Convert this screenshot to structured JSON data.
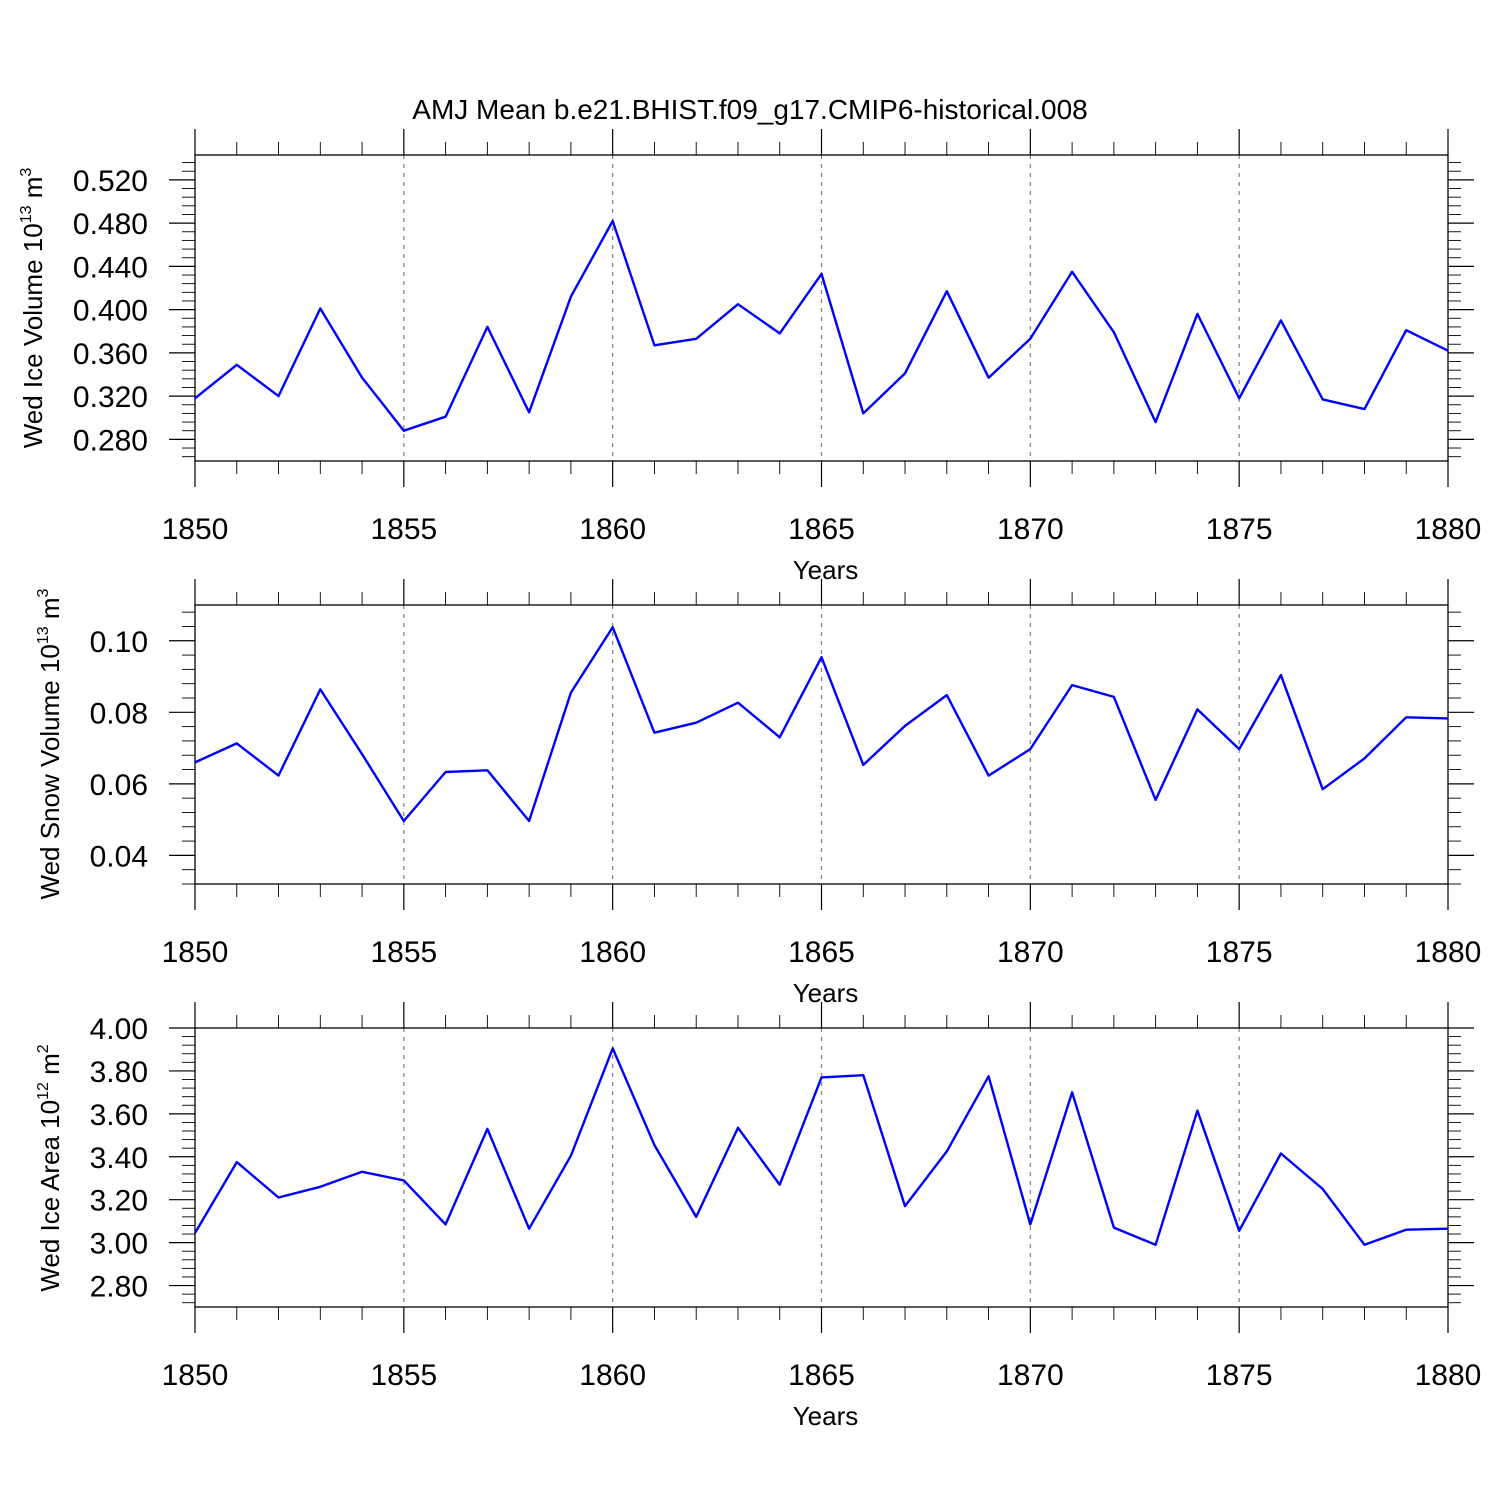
{
  "title": "AMJ Mean b.e21.BHIST.f09_g17.CMIP6-historical.008",
  "colors": {
    "series": "#0000ff",
    "grid": "#808080",
    "axis": "#000000"
  },
  "chart_data": [
    {
      "type": "line",
      "ylabel": {
        "main": "Wed Ice Volume 10",
        "sup_exp": "13",
        "unit": " m",
        "sup_unit": "3"
      },
      "xlabel": "Years",
      "xlim": [
        1850,
        1880
      ],
      "ylim": [
        0.26,
        0.543
      ],
      "yticks": [
        0.28,
        0.32,
        0.36,
        0.4,
        0.44,
        0.48,
        0.52
      ],
      "ytick_labels": [
        "0.280",
        "0.320",
        "0.360",
        "0.400",
        "0.440",
        "0.480",
        "0.520"
      ],
      "yminor_step": 0.008,
      "xticks": [
        1850,
        1855,
        1860,
        1865,
        1870,
        1875,
        1880
      ],
      "xtick_labels": [
        "1850",
        "1855",
        "1860",
        "1865",
        "1870",
        "1875",
        "1880"
      ],
      "grid": "x, dashed",
      "x": [
        1850,
        1851,
        1852,
        1853,
        1854,
        1855,
        1856,
        1857,
        1858,
        1859,
        1860,
        1861,
        1862,
        1863,
        1864,
        1865,
        1866,
        1867,
        1868,
        1869,
        1870,
        1871,
        1872,
        1873,
        1874,
        1875,
        1876,
        1877,
        1878,
        1879,
        1880
      ],
      "y": [
        0.318,
        0.349,
        0.32,
        0.401,
        0.337,
        0.288,
        0.301,
        0.384,
        0.305,
        0.412,
        0.482,
        0.367,
        0.373,
        0.405,
        0.378,
        0.433,
        0.304,
        0.341,
        0.417,
        0.337,
        0.373,
        0.435,
        0.379,
        0.296,
        0.396,
        0.318,
        0.39,
        0.317,
        0.308,
        0.381,
        0.362
      ]
    },
    {
      "type": "line",
      "ylabel": {
        "main": "Wed Snow Volume 10",
        "sup_exp": "13",
        "unit": " m",
        "sup_unit": "3"
      },
      "xlabel": "Years",
      "xlim": [
        1850,
        1880
      ],
      "ylim": [
        0.032,
        0.11
      ],
      "yticks": [
        0.04,
        0.06,
        0.08,
        0.1
      ],
      "ytick_labels": [
        "0.04",
        "0.06",
        "0.08",
        "0.10"
      ],
      "yminor_step": 0.004,
      "xticks": [
        1850,
        1855,
        1860,
        1865,
        1870,
        1875,
        1880
      ],
      "xtick_labels": [
        "1850",
        "1855",
        "1860",
        "1865",
        "1870",
        "1875",
        "1880"
      ],
      "grid": "x, dashed",
      "x": [
        1850,
        1851,
        1852,
        1853,
        1854,
        1855,
        1856,
        1857,
        1858,
        1859,
        1860,
        1861,
        1862,
        1863,
        1864,
        1865,
        1866,
        1867,
        1868,
        1869,
        1870,
        1871,
        1872,
        1873,
        1874,
        1875,
        1876,
        1877,
        1878,
        1879,
        1880
      ],
      "y": [
        0.066,
        0.0713,
        0.0623,
        0.0864,
        0.0683,
        0.0496,
        0.0633,
        0.0638,
        0.0496,
        0.0855,
        0.1038,
        0.0743,
        0.0771,
        0.0827,
        0.073,
        0.0954,
        0.0653,
        0.0762,
        0.0848,
        0.0623,
        0.0697,
        0.0876,
        0.0843,
        0.0555,
        0.0808,
        0.0697,
        0.0904,
        0.0585,
        0.0671,
        0.0786,
        0.0783
      ]
    },
    {
      "type": "line",
      "ylabel": {
        "main": "Wed Ice Area 10",
        "sup_exp": "12",
        "unit": " m",
        "sup_unit": "2"
      },
      "xlabel": "Years",
      "xlim": [
        1850,
        1880
      ],
      "ylim": [
        2.7,
        4.0
      ],
      "yticks": [
        2.8,
        3.0,
        3.2,
        3.4,
        3.6,
        3.8,
        4.0
      ],
      "ytick_labels": [
        "2.80",
        "3.00",
        "3.20",
        "3.40",
        "3.60",
        "3.80",
        "4.00"
      ],
      "yminor_step": 0.04,
      "xticks": [
        1850,
        1855,
        1860,
        1865,
        1870,
        1875,
        1880
      ],
      "xtick_labels": [
        "1850",
        "1855",
        "1860",
        "1865",
        "1870",
        "1875",
        "1880"
      ],
      "grid": "x, dashed",
      "x": [
        1850,
        1851,
        1852,
        1853,
        1854,
        1855,
        1856,
        1857,
        1858,
        1859,
        1860,
        1861,
        1862,
        1863,
        1864,
        1865,
        1866,
        1867,
        1868,
        1869,
        1870,
        1871,
        1872,
        1873,
        1874,
        1875,
        1876,
        1877,
        1878,
        1879,
        1880
      ],
      "y": [
        3.045,
        3.375,
        3.21,
        3.26,
        3.33,
        3.29,
        3.085,
        3.53,
        3.065,
        3.405,
        3.905,
        3.455,
        3.12,
        3.535,
        3.27,
        3.77,
        3.78,
        3.17,
        3.425,
        3.775,
        3.085,
        3.7,
        3.07,
        2.99,
        3.615,
        3.055,
        3.415,
        3.25,
        2.99,
        3.06,
        3.065
      ]
    }
  ]
}
